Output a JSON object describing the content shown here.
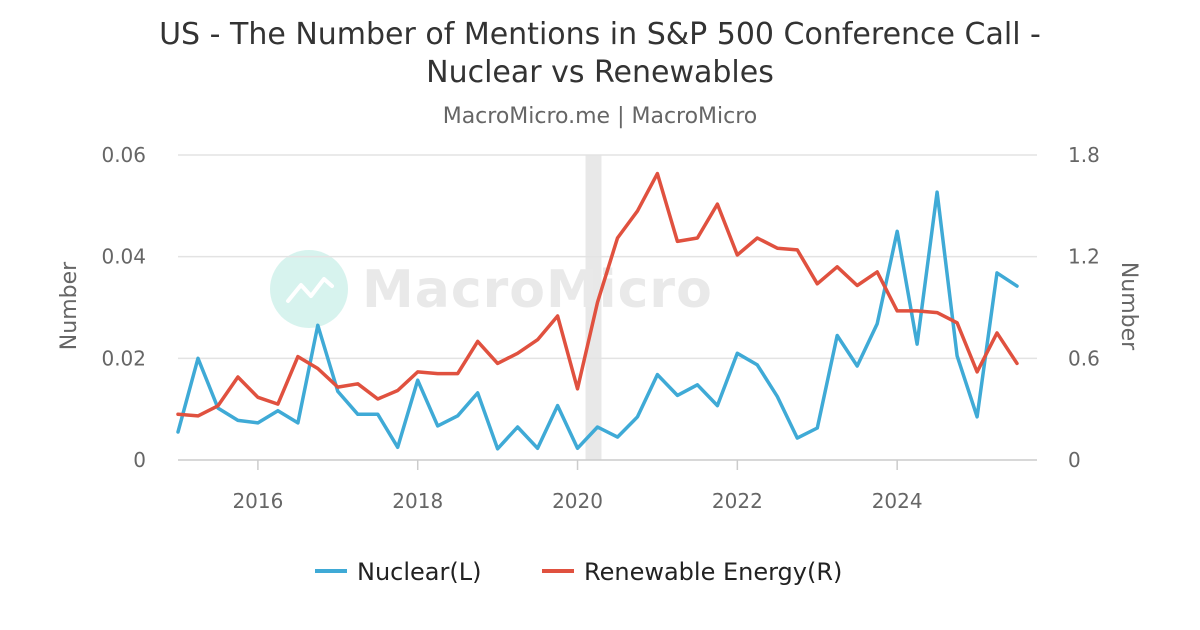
{
  "chart_data": {
    "type": "line",
    "title_line1": "US - The Number of Mentions in S&P 500 Conference Call -",
    "title_line2": "Nuclear vs Renewables",
    "subtitle": "MacroMicro.me | MacroMicro",
    "watermark": "MacroMicro",
    "ylabel_left": "Number",
    "ylabel_right": "Number",
    "ylim_left": [
      0,
      0.06
    ],
    "ylim_right": [
      0,
      1.8
    ],
    "yticks_left": [
      {
        "value": 0,
        "label": "0"
      },
      {
        "value": 0.02,
        "label": "0.02"
      },
      {
        "value": 0.04,
        "label": "0.04"
      },
      {
        "value": 0.06,
        "label": "0.06"
      }
    ],
    "yticks_right": [
      {
        "value": 0,
        "label": "0"
      },
      {
        "value": 0.6,
        "label": "0.6"
      },
      {
        "value": 1.2,
        "label": "1.2"
      },
      {
        "value": 1.8,
        "label": "1.8"
      }
    ],
    "xlim": [
      2015.0,
      2025.75
    ],
    "xticks": [
      {
        "value": 2016,
        "label": "2016"
      },
      {
        "value": 2018,
        "label": "2018"
      },
      {
        "value": 2020,
        "label": "2020"
      },
      {
        "value": 2022,
        "label": "2022"
      },
      {
        "value": 2024,
        "label": "2024"
      }
    ],
    "shaded_region": {
      "from": 2020.1,
      "to": 2020.3,
      "color": "#e8e8e8"
    },
    "x": [
      2015.0,
      2015.25,
      2015.5,
      2015.75,
      2016.0,
      2016.25,
      2016.5,
      2016.75,
      2017.0,
      2017.25,
      2017.5,
      2017.75,
      2018.0,
      2018.25,
      2018.5,
      2018.75,
      2019.0,
      2019.25,
      2019.5,
      2019.75,
      2020.0,
      2020.25,
      2020.5,
      2020.75,
      2021.0,
      2021.25,
      2021.5,
      2021.75,
      2022.0,
      2022.25,
      2022.5,
      2022.75,
      2023.0,
      2023.25,
      2023.5,
      2023.75,
      2024.0,
      2024.25,
      2024.5,
      2024.75,
      2025.0,
      2025.25,
      2025.5
    ],
    "series": [
      {
        "name": "Nuclear(L)",
        "axis": "left",
        "color": "#3faad6",
        "values": [
          0.0055,
          0.02,
          0.0102,
          0.0078,
          0.0073,
          0.0097,
          0.0073,
          0.0265,
          0.0135,
          0.009,
          0.009,
          0.0025,
          0.0157,
          0.0067,
          0.0087,
          0.0132,
          0.0022,
          0.0065,
          0.0023,
          0.0107,
          0.0023,
          0.0065,
          0.0045,
          0.0085,
          0.0168,
          0.0127,
          0.0148,
          0.0107,
          0.021,
          0.0187,
          0.0125,
          0.0043,
          0.0063,
          0.0245,
          0.0185,
          0.0268,
          0.045,
          0.0228,
          0.0527,
          0.0205,
          0.0085,
          0.0368,
          0.0342
        ]
      },
      {
        "name": "Renewable Energy(R)",
        "axis": "right",
        "color": "#e0513f",
        "values": [
          0.27,
          0.26,
          0.32,
          0.49,
          0.37,
          0.33,
          0.61,
          0.54,
          0.43,
          0.45,
          0.36,
          0.41,
          0.52,
          0.51,
          0.51,
          0.7,
          0.57,
          0.63,
          0.71,
          0.85,
          0.42,
          0.93,
          1.31,
          1.47,
          1.69,
          1.29,
          1.31,
          1.51,
          1.21,
          1.31,
          1.25,
          1.24,
          1.04,
          1.14,
          1.03,
          1.11,
          0.88,
          0.88,
          0.87,
          0.81,
          0.52,
          0.75,
          0.57
        ]
      }
    ],
    "legend_position": "bottom-center"
  }
}
